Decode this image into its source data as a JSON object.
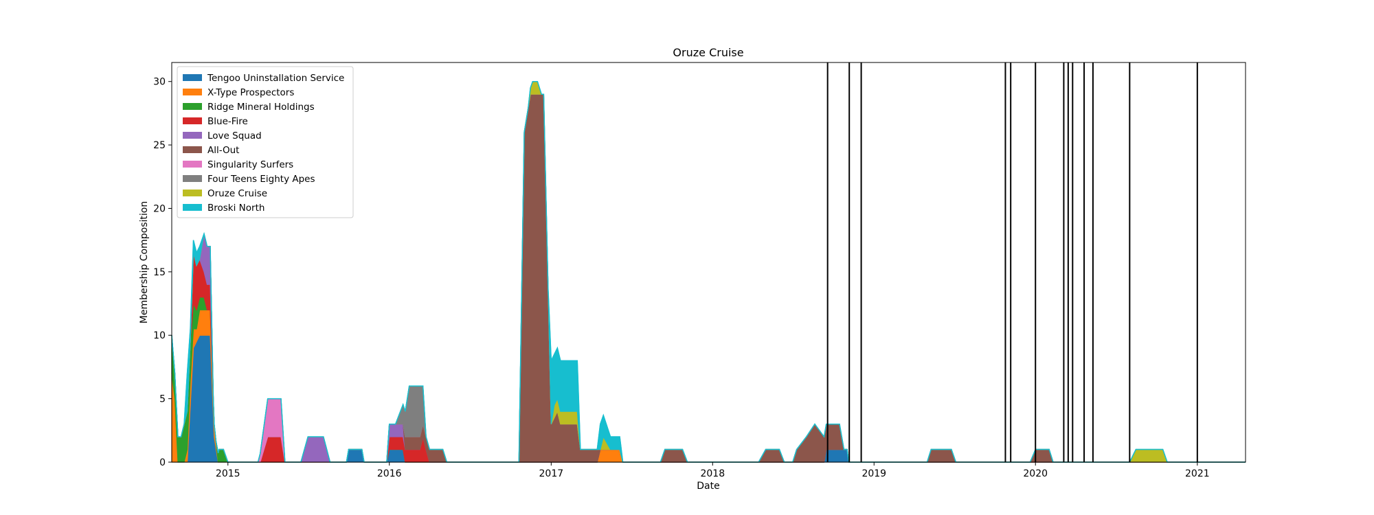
{
  "chart_data": {
    "type": "area",
    "stacked": true,
    "title": "Oruze Cruise",
    "xlabel": "Date",
    "ylabel": "Membership Composition",
    "xlim": [
      "2014-08-27",
      "2021-04-20"
    ],
    "ylim": [
      0,
      31.5
    ],
    "yticks": [
      0,
      5,
      10,
      15,
      20,
      25,
      30
    ],
    "xticks": [
      {
        "date": "2015-01-01",
        "label": "2015"
      },
      {
        "date": "2016-01-01",
        "label": "2016"
      },
      {
        "date": "2017-01-01",
        "label": "2017"
      },
      {
        "date": "2018-01-01",
        "label": "2018"
      },
      {
        "date": "2019-01-01",
        "label": "2019"
      },
      {
        "date": "2020-01-01",
        "label": "2020"
      },
      {
        "date": "2021-01-01",
        "label": "2021"
      }
    ],
    "legend_position": "upper-left",
    "series": [
      {
        "name": "Tengoo Uninstallation Service",
        "color": "#1f77b4",
        "points": [
          [
            "2014-10-01",
            0
          ],
          [
            "2014-10-15",
            9
          ],
          [
            "2014-10-29",
            10
          ],
          [
            "2014-11-22",
            10
          ],
          [
            "2014-12-01",
            2
          ],
          [
            "2014-12-10",
            0
          ],
          [
            "2015-09-26",
            0
          ],
          [
            "2015-10-01",
            1
          ],
          [
            "2015-10-31",
            1
          ],
          [
            "2015-11-05",
            0
          ],
          [
            "2015-12-26",
            0
          ],
          [
            "2016-01-01",
            1
          ],
          [
            "2016-02-01",
            1
          ],
          [
            "2016-02-06",
            0
          ],
          [
            "2018-09-10",
            0
          ],
          [
            "2018-09-15",
            1
          ],
          [
            "2018-11-01",
            1
          ],
          [
            "2018-11-05",
            0
          ]
        ]
      },
      {
        "name": "X-Type Prospectors",
        "color": "#ff7f0e",
        "points": [
          [
            "2014-08-27",
            7
          ],
          [
            "2014-09-03",
            5
          ],
          [
            "2014-09-10",
            0
          ],
          [
            "2014-09-24",
            0
          ],
          [
            "2014-10-01",
            1
          ],
          [
            "2014-10-08",
            2
          ],
          [
            "2014-10-22",
            1
          ],
          [
            "2014-10-29",
            2
          ],
          [
            "2014-11-22",
            2
          ],
          [
            "2014-12-01",
            1
          ],
          [
            "2014-12-10",
            0
          ],
          [
            "2017-04-15",
            0
          ],
          [
            "2017-04-22",
            1
          ],
          [
            "2017-06-05",
            1
          ],
          [
            "2017-06-12",
            0
          ]
        ]
      },
      {
        "name": "Ridge Mineral Holdings",
        "color": "#2ca02c",
        "points": [
          [
            "2014-08-27",
            3
          ],
          [
            "2014-09-03",
            2
          ],
          [
            "2014-09-17",
            2
          ],
          [
            "2014-09-24",
            3
          ],
          [
            "2014-10-08",
            3
          ],
          [
            "2014-10-15",
            2
          ],
          [
            "2014-10-29",
            1
          ],
          [
            "2014-11-08",
            1
          ],
          [
            "2014-11-15",
            0
          ],
          [
            "2014-12-05",
            0
          ],
          [
            "2014-12-12",
            1
          ],
          [
            "2014-12-22",
            1
          ],
          [
            "2015-01-01",
            0
          ]
        ]
      },
      {
        "name": "Blue-Fire",
        "color": "#d62728",
        "points": [
          [
            "2014-10-08",
            0
          ],
          [
            "2014-10-15",
            4
          ],
          [
            "2014-10-29",
            3
          ],
          [
            "2014-11-08",
            2
          ],
          [
            "2014-11-22",
            2
          ],
          [
            "2014-11-29",
            0
          ],
          [
            "2015-03-15",
            0
          ],
          [
            "2015-04-01",
            2
          ],
          [
            "2015-05-01",
            2
          ],
          [
            "2015-05-10",
            0
          ],
          [
            "2015-12-26",
            0
          ],
          [
            "2016-01-01",
            1
          ],
          [
            "2016-03-10",
            1
          ],
          [
            "2016-03-17",
            2
          ],
          [
            "2016-03-24",
            1
          ],
          [
            "2016-04-01",
            0
          ]
        ]
      },
      {
        "name": "Love Squad",
        "color": "#9467bd",
        "points": [
          [
            "2014-10-29",
            0
          ],
          [
            "2014-11-08",
            3
          ],
          [
            "2014-11-22",
            3
          ],
          [
            "2014-11-29",
            0
          ],
          [
            "2015-06-15",
            0
          ],
          [
            "2015-07-01",
            2
          ],
          [
            "2015-08-05",
            2
          ],
          [
            "2015-08-20",
            0
          ],
          [
            "2015-12-26",
            0
          ],
          [
            "2016-01-01",
            1
          ],
          [
            "2016-02-01",
            1
          ],
          [
            "2016-02-06",
            0
          ]
        ]
      },
      {
        "name": "All-Out",
        "color": "#8c564b",
        "points": [
          [
            "2016-02-01",
            0
          ],
          [
            "2016-02-06",
            1
          ],
          [
            "2016-05-01",
            1
          ],
          [
            "2016-05-10",
            0
          ],
          [
            "2016-10-20",
            0
          ],
          [
            "2016-11-01",
            26
          ],
          [
            "2016-11-15",
            29
          ],
          [
            "2016-12-15",
            29
          ],
          [
            "2017-01-01",
            3
          ],
          [
            "2017-01-15",
            4
          ],
          [
            "2017-01-22",
            3
          ],
          [
            "2017-03-01",
            3
          ],
          [
            "2017-03-08",
            1
          ],
          [
            "2017-04-15",
            1
          ],
          [
            "2017-04-22",
            0
          ],
          [
            "2017-09-05",
            0
          ],
          [
            "2017-09-15",
            1
          ],
          [
            "2017-10-25",
            1
          ],
          [
            "2017-11-05",
            0
          ],
          [
            "2018-04-15",
            0
          ],
          [
            "2018-05-01",
            1
          ],
          [
            "2018-06-01",
            1
          ],
          [
            "2018-06-12",
            0
          ],
          [
            "2018-07-01",
            0
          ],
          [
            "2018-07-10",
            1
          ],
          [
            "2018-08-01",
            2
          ],
          [
            "2018-08-20",
            3
          ],
          [
            "2018-09-10",
            2
          ],
          [
            "2018-10-15",
            2
          ],
          [
            "2018-10-25",
            0
          ],
          [
            "2019-05-01",
            0
          ],
          [
            "2019-05-10",
            1
          ],
          [
            "2019-06-25",
            1
          ],
          [
            "2019-07-05",
            0
          ],
          [
            "2019-12-20",
            0
          ],
          [
            "2020-01-01",
            1
          ],
          [
            "2020-02-01",
            1
          ],
          [
            "2020-02-10",
            0
          ]
        ]
      },
      {
        "name": "Singularity Surfers",
        "color": "#e377c2",
        "points": [
          [
            "2015-03-10",
            0
          ],
          [
            "2015-04-01",
            3
          ],
          [
            "2015-05-01",
            3
          ],
          [
            "2015-05-10",
            0
          ]
        ]
      },
      {
        "name": "Four Teens Eighty Apes",
        "color": "#7f7f7f",
        "points": [
          [
            "2016-01-15",
            0
          ],
          [
            "2016-02-06",
            2
          ],
          [
            "2016-02-15",
            4
          ],
          [
            "2016-03-10",
            4
          ],
          [
            "2016-03-17",
            3
          ],
          [
            "2016-03-24",
            0
          ]
        ]
      },
      {
        "name": "Oruze Cruise",
        "color": "#bcbd22",
        "points": [
          [
            "2016-11-10",
            0
          ],
          [
            "2016-11-20",
            1
          ],
          [
            "2016-12-01",
            1
          ],
          [
            "2016-12-10",
            0
          ],
          [
            "2017-01-01",
            0
          ],
          [
            "2017-01-08",
            1
          ],
          [
            "2017-01-15",
            1
          ],
          [
            "2017-01-22",
            1
          ],
          [
            "2017-03-01",
            1
          ],
          [
            "2017-03-08",
            0
          ],
          [
            "2017-04-22",
            0
          ],
          [
            "2017-04-29",
            1
          ],
          [
            "2017-05-15",
            0
          ],
          [
            "2020-08-01",
            0
          ],
          [
            "2020-08-15",
            1
          ],
          [
            "2020-10-15",
            1
          ],
          [
            "2020-10-25",
            0
          ]
        ]
      },
      {
        "name": "Broski North",
        "color": "#17becf",
        "points": [
          [
            "2014-09-24",
            0
          ],
          [
            "2014-10-01",
            3
          ],
          [
            "2014-10-08",
            1
          ],
          [
            "2014-10-29",
            1
          ],
          [
            "2014-11-08",
            0
          ],
          [
            "2016-12-25",
            0
          ],
          [
            "2017-01-01",
            5
          ],
          [
            "2017-01-08",
            4
          ],
          [
            "2017-01-22",
            4
          ],
          [
            "2017-03-01",
            4
          ],
          [
            "2017-03-08",
            0
          ],
          [
            "2017-04-15",
            0
          ],
          [
            "2017-04-22",
            2
          ],
          [
            "2017-05-15",
            1
          ],
          [
            "2017-06-05",
            1
          ],
          [
            "2017-06-12",
            0
          ]
        ]
      }
    ],
    "vertical_lines": [
      "2018-09-18",
      "2018-11-06",
      "2018-12-03",
      "2019-10-25",
      "2019-11-06",
      "2020-01-01",
      "2020-03-05",
      "2020-03-15",
      "2020-03-25",
      "2020-04-20",
      "2020-05-10",
      "2020-08-01",
      "2021-01-01"
    ]
  }
}
